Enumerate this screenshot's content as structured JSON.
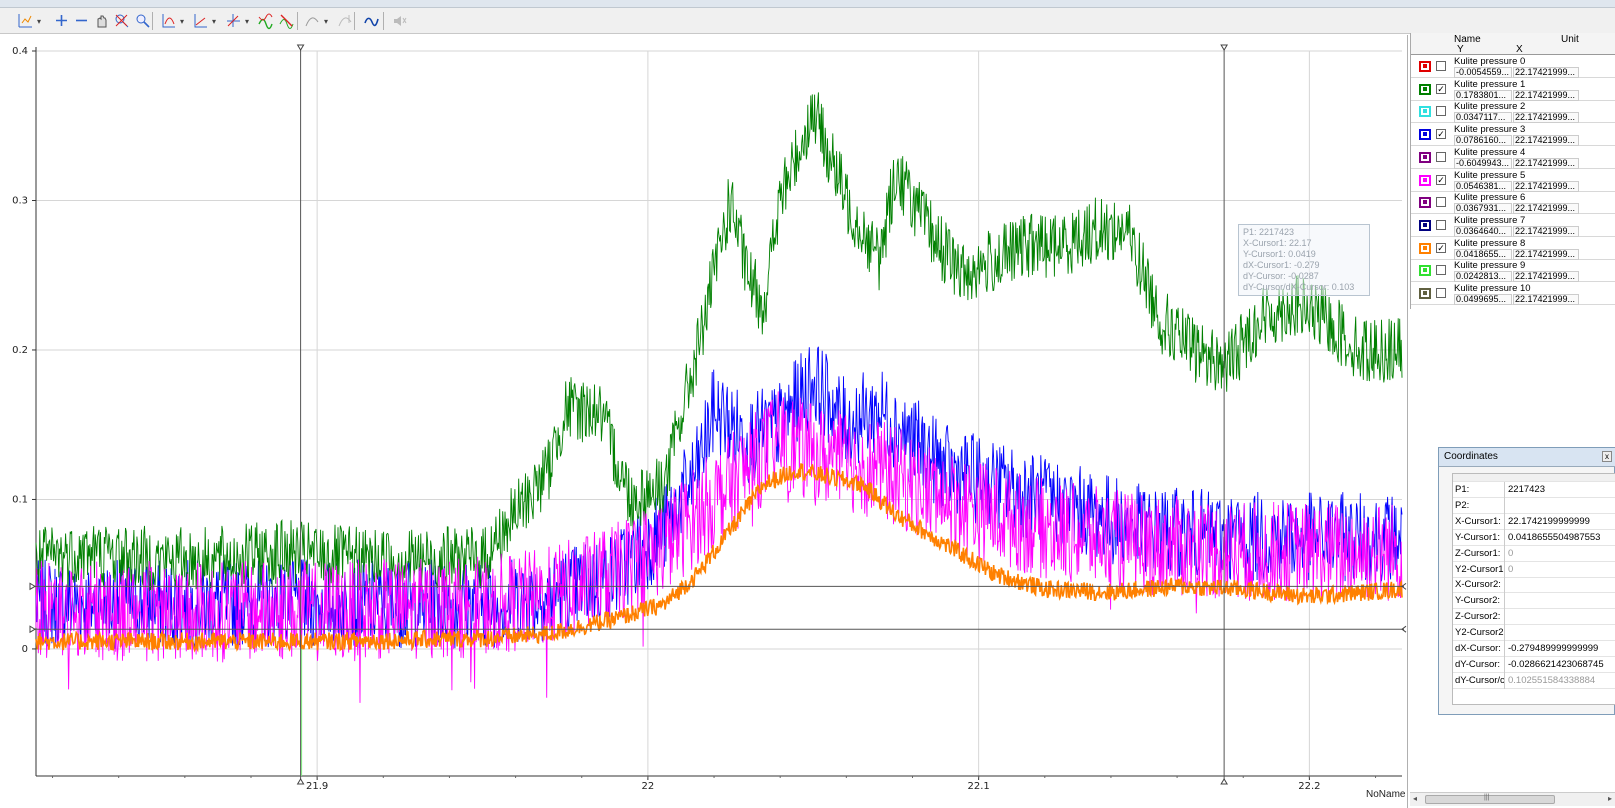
{
  "toolbar": {
    "buttons": [
      {
        "name": "select-tool",
        "icon": "cursor-chart-icon",
        "dropdown": true
      },
      {
        "name": "add-cursor",
        "icon": "plus-icon"
      },
      {
        "name": "remove-cursor",
        "icon": "minus-icon"
      },
      {
        "name": "pan",
        "icon": "hand-icon"
      },
      {
        "name": "zoom-reset",
        "icon": "zoom-reset-icon"
      },
      {
        "name": "zoom",
        "icon": "zoom-icon"
      },
      {
        "name": "axis-y",
        "icon": "axis-y-icon",
        "dropdown": true
      },
      {
        "name": "axis-xy",
        "icon": "axis-xy-icon",
        "dropdown": true
      },
      {
        "name": "axis-cross",
        "icon": "axis-cross-icon",
        "dropdown": true
      },
      {
        "name": "autoscale",
        "icon": "autoscale-icon"
      },
      {
        "name": "autoscale-off",
        "icon": "autoscale-off-icon"
      },
      {
        "name": "curve-tool",
        "icon": "curve-icon",
        "dropdown": true
      },
      {
        "name": "curve-disabled",
        "icon": "curve-disabled-icon"
      },
      {
        "name": "smooth",
        "icon": "smooth-icon"
      },
      {
        "name": "mute",
        "icon": "mute-icon"
      }
    ]
  },
  "chart_data": {
    "type": "line",
    "title": "",
    "xlabel": "NoName",
    "ylabel": "",
    "xlim": [
      21.815,
      22.228
    ],
    "ylim": [
      -0.085,
      0.4
    ],
    "x_ticks": [
      "21.9",
      "22",
      "22.1",
      "22.2"
    ],
    "x_tick_values": [
      21.9,
      22.0,
      22.1,
      22.2
    ],
    "y_ticks": [
      "0",
      "0.1",
      "0.2",
      "0.3",
      "0.4"
    ],
    "y_tick_values": [
      0,
      0.1,
      0.2,
      0.3,
      0.4
    ],
    "grid": true,
    "series": [
      {
        "name": "Kulite pressure 1",
        "color": "#008000",
        "x": [
          21.815,
          21.83,
          21.85,
          21.87,
          21.89,
          21.91,
          21.93,
          21.95,
          21.96,
          21.97,
          21.975,
          21.985,
          21.995,
          22.005,
          22.015,
          22.025,
          22.03,
          22.035,
          22.04,
          22.05,
          22.06,
          22.07,
          22.075,
          22.085,
          22.095,
          22.105,
          22.115,
          22.125,
          22.135,
          22.145,
          22.155,
          22.165,
          22.175,
          22.185,
          22.195,
          22.205,
          22.215,
          22.228
        ],
        "y": [
          0.06,
          0.065,
          0.06,
          0.06,
          0.065,
          0.06,
          0.06,
          0.06,
          0.09,
          0.12,
          0.16,
          0.16,
          0.1,
          0.11,
          0.2,
          0.3,
          0.25,
          0.23,
          0.3,
          0.36,
          0.3,
          0.26,
          0.32,
          0.28,
          0.25,
          0.26,
          0.27,
          0.27,
          0.28,
          0.28,
          0.22,
          0.2,
          0.19,
          0.22,
          0.23,
          0.22,
          0.2,
          0.2
        ]
      },
      {
        "name": "Kulite pressure 3",
        "color": "#0000ff",
        "x": [
          21.815,
          21.85,
          21.9,
          21.95,
          21.97,
          21.99,
          22.005,
          22.015,
          22.02,
          22.03,
          22.04,
          22.05,
          22.06,
          22.07,
          22.09,
          22.12,
          22.15,
          22.18,
          22.21,
          22.228
        ],
        "y": [
          0.03,
          0.03,
          0.03,
          0.03,
          0.035,
          0.05,
          0.08,
          0.12,
          0.16,
          0.14,
          0.15,
          0.18,
          0.15,
          0.16,
          0.12,
          0.1,
          0.08,
          0.075,
          0.075,
          0.075
        ]
      },
      {
        "name": "Kulite pressure 5",
        "color": "#ff00ff",
        "x": [
          21.815,
          21.85,
          21.9,
          21.95,
          21.97,
          21.99,
          22.005,
          22.02,
          22.03,
          22.04,
          22.05,
          22.06,
          22.07,
          22.09,
          22.12,
          22.15,
          22.18,
          22.21,
          22.228
        ],
        "y": [
          0.025,
          0.025,
          0.025,
          0.028,
          0.035,
          0.05,
          0.07,
          0.1,
          0.12,
          0.14,
          0.13,
          0.125,
          0.12,
          0.1,
          0.08,
          0.07,
          0.065,
          0.065,
          0.065
        ]
      },
      {
        "name": "Kulite pressure 8",
        "color": "#ff8000",
        "x": [
          21.815,
          21.85,
          21.9,
          21.95,
          21.97,
          21.99,
          22.005,
          22.015,
          22.025,
          22.035,
          22.045,
          22.055,
          22.065,
          22.075,
          22.09,
          22.105,
          22.12,
          22.14,
          22.16,
          22.18,
          22.2,
          22.228
        ],
        "y": [
          0.005,
          0.005,
          0.005,
          0.007,
          0.01,
          0.02,
          0.03,
          0.05,
          0.08,
          0.11,
          0.12,
          0.115,
          0.11,
          0.09,
          0.07,
          0.05,
          0.04,
          0.038,
          0.042,
          0.04,
          0.035,
          0.04
        ]
      }
    ],
    "cursors": {
      "x1": 22.17421999999999,
      "x2": 21.895,
      "y1": 0.0418655504987553,
      "y2": 0.0132
    }
  },
  "legend": {
    "header_name": "Name",
    "header_unit": "Unit",
    "header_y": "Y",
    "header_x": "X",
    "rows": [
      {
        "name": "Kulite pressure 0",
        "y": "-0.0054559...",
        "x": "22.17421999...",
        "color": "#e00000",
        "checked": false,
        "check": ""
      },
      {
        "name": "Kulite pressure 1",
        "y": "0.1783801...",
        "x": "22.17421999...",
        "color": "#008000",
        "checked": true,
        "check": "✓"
      },
      {
        "name": "Kulite pressure 2",
        "y": "0.0347117...",
        "x": "22.17421999...",
        "color": "#30e0e0",
        "checked": false,
        "check": ""
      },
      {
        "name": "Kulite pressure 3",
        "y": "0.0786160...",
        "x": "22.17421999...",
        "color": "#0000e0",
        "checked": true,
        "check": "✓"
      },
      {
        "name": "Kulite pressure 4",
        "y": "-0.6049943...",
        "x": "22.17421999...",
        "color": "#800080",
        "checked": false,
        "check": ""
      },
      {
        "name": "Kulite pressure 5",
        "y": "0.0546381...",
        "x": "22.17421999...",
        "color": "#ff00ff",
        "checked": true,
        "check": "✓"
      },
      {
        "name": "Kulite pressure 6",
        "y": "0.0367931...",
        "x": "22.17421999...",
        "color": "#800080",
        "checked": false,
        "check": ""
      },
      {
        "name": "Kulite pressure 7",
        "y": "0.0364640...",
        "x": "22.17421999...",
        "color": "#000080",
        "checked": false,
        "check": ""
      },
      {
        "name": "Kulite pressure 8",
        "y": "0.0418655...",
        "x": "22.17421999...",
        "color": "#ff8000",
        "checked": true,
        "check": "✓"
      },
      {
        "name": "Kulite pressure 9",
        "y": "0.0242813...",
        "x": "22.17421999...",
        "color": "#30e030",
        "checked": false,
        "check": ""
      },
      {
        "name": "Kulite pressure 10",
        "y": "0.0499695...",
        "x": "22.17421999...",
        "color": "#606040",
        "checked": false,
        "check": ""
      }
    ]
  },
  "tooltip": {
    "lines": [
      "P1: 2217423",
      "X-Cursor1: 22.17",
      "Y-Cursor1: 0.0419",
      "dX-Cursor1: -0.279",
      "dY-Cursor: -0.0287",
      "dY-Cursor/dX-Cursor: 0.103"
    ]
  },
  "coordinates": {
    "title": "Coordinates",
    "close": "x",
    "rows": [
      {
        "key": "",
        "value": "",
        "dim": false
      },
      {
        "key": "P1:",
        "value": "2217423",
        "dim": false
      },
      {
        "key": "P2:",
        "value": "",
        "dim": false
      },
      {
        "key": "X-Cursor1:",
        "value": "22.1742199999999",
        "dim": false
      },
      {
        "key": "Y-Cursor1:",
        "value": "0.0418655504987553",
        "dim": false
      },
      {
        "key": "Z-Cursor1:",
        "value": "0",
        "dim": true
      },
      {
        "key": "Y2-Cursor1",
        "value": "0",
        "dim": true
      },
      {
        "key": "X-Cursor2:",
        "value": "",
        "dim": false
      },
      {
        "key": "Y-Cursor2:",
        "value": "",
        "dim": false
      },
      {
        "key": "Z-Cursor2:",
        "value": "",
        "dim": false
      },
      {
        "key": "Y2-Cursor2",
        "value": "",
        "dim": false
      },
      {
        "key": "dX-Cursor:",
        "value": "-0.279489999999999",
        "dim": false
      },
      {
        "key": "dY-Cursor:",
        "value": "-0.0286621423068745",
        "dim": false
      },
      {
        "key": "dY-Cursor/c",
        "value": "0.102551584338884",
        "dim": true
      }
    ]
  },
  "scrollbar": {
    "left": "◂",
    "grip": "|||",
    "right": "▸"
  }
}
